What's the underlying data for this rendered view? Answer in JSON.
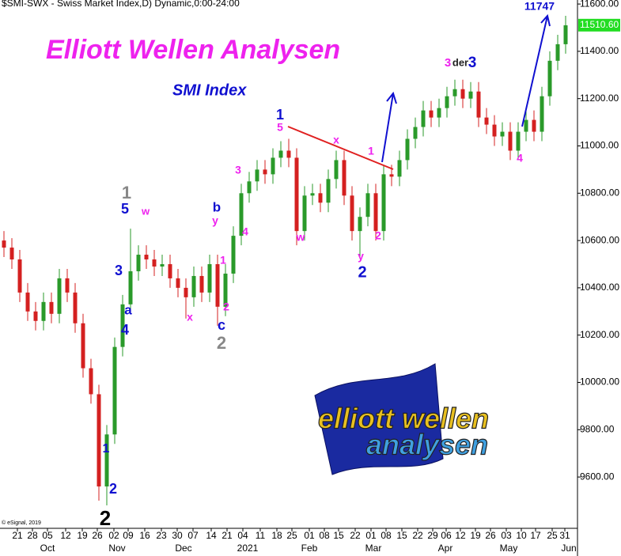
{
  "chart_data": {
    "type": "candlestick",
    "title": "$SMI-SWX - Swiss Market Index,D) Dynamic,0:00-24:00",
    "up_color": "#2a9a2a",
    "down_color": "#d42020",
    "open": [
      10600,
      10570,
      10520,
      10380,
      10300,
      10260,
      10340,
      10290,
      10440,
      10380,
      10250,
      10060,
      9950,
      9560,
      9780,
      10150,
      10330,
      10470,
      10540,
      10520,
      10490,
      10500,
      10440,
      10400,
      10360,
      10450,
      10380,
      10500,
      10320,
      10460,
      10620,
      10800,
      10850,
      10900,
      10880,
      10950,
      10980,
      10950,
      10640,
      10790,
      10800,
      10760,
      10860,
      10940,
      10790,
      10640,
      10700,
      10800,
      10640,
      10880,
      10870,
      10940,
      11030,
      11080,
      11150,
      11120,
      11160,
      11210,
      11240,
      11200,
      11230,
      11120,
      11090,
      11040,
      11060,
      10980,
      11060,
      11110,
      11060,
      11210,
      11360,
      11430
    ],
    "high": [
      10640,
      10610,
      10560,
      10420,
      10340,
      10380,
      10380,
      10480,
      10480,
      10420,
      10290,
      10100,
      9990,
      9820,
      10190,
      10370,
      10650,
      10580,
      10580,
      10560,
      10540,
      10540,
      10480,
      10440,
      10490,
      10490,
      10540,
      10540,
      10500,
      10660,
      10840,
      10890,
      10940,
      10940,
      10990,
      11020,
      11030,
      10990,
      10830,
      10840,
      10840,
      10900,
      10980,
      10980,
      10830,
      10740,
      10840,
      10840,
      10920,
      10920,
      10980,
      11070,
      11120,
      11190,
      11190,
      11200,
      11250,
      11280,
      11280,
      11270,
      11270,
      11160,
      11130,
      11100,
      11100,
      11100,
      11150,
      11150,
      11250,
      11400,
      11470,
      11550
    ],
    "low": [
      10530,
      10480,
      10340,
      10260,
      10220,
      10220,
      10250,
      10250,
      10340,
      10210,
      10020,
      9910,
      9500,
      9480,
      9740,
      10110,
      10290,
      10430,
      10480,
      10450,
      10450,
      10400,
      10360,
      10270,
      10320,
      10340,
      10340,
      10240,
      10280,
      10420,
      10580,
      10760,
      10810,
      10840,
      10840,
      10910,
      10910,
      10580,
      10600,
      10750,
      10720,
      10720,
      10820,
      10750,
      10600,
      10530,
      10660,
      10600,
      10600,
      10830,
      10830,
      10900,
      10990,
      11040,
      11080,
      11080,
      11120,
      11170,
      11160,
      11160,
      11080,
      11050,
      11000,
      11000,
      10940,
      10940,
      11020,
      11020,
      11020,
      11170,
      11320,
      11390
    ],
    "close": [
      10570,
      10520,
      10380,
      10300,
      10260,
      10340,
      10290,
      10440,
      10380,
      10250,
      10060,
      9950,
      9560,
      9780,
      10150,
      10330,
      10470,
      10540,
      10520,
      10490,
      10500,
      10440,
      10400,
      10360,
      10450,
      10380,
      10500,
      10320,
      10460,
      10620,
      10800,
      10850,
      10900,
      10880,
      10950,
      10980,
      10950,
      10640,
      10790,
      10800,
      10760,
      10860,
      10940,
      10790,
      10640,
      10700,
      10800,
      10640,
      10880,
      10870,
      10940,
      11030,
      11080,
      11150,
      11120,
      11160,
      11210,
      11240,
      11200,
      11230,
      11120,
      11090,
      11040,
      11060,
      10980,
      11060,
      11110,
      11060,
      11210,
      11360,
      11430,
      11510
    ],
    "ylim": [
      9383,
      11617
    ],
    "yticks": [
      {
        "value": 9600,
        "label": "9600.00"
      },
      {
        "value": 9800,
        "label": "9800.00"
      },
      {
        "value": 10000,
        "label": "10000.00"
      },
      {
        "value": 10200,
        "label": "10200.00"
      },
      {
        "value": 10400,
        "label": "10400.00"
      },
      {
        "value": 10600,
        "label": "10600.00"
      },
      {
        "value": 10800,
        "label": "10800.00"
      },
      {
        "value": 11000,
        "label": "11000.00"
      },
      {
        "value": 11200,
        "label": "11200.00"
      },
      {
        "value": 11400,
        "label": "11400.00"
      },
      {
        "value": 11600,
        "label": "11600.00"
      }
    ],
    "last_price": {
      "value": 11510.6,
      "label": "11510.60"
    },
    "xlim": [
      -0.5,
      72.5
    ],
    "xticks": [
      {
        "value": 1.7,
        "label": "21"
      },
      {
        "value": 3.6,
        "label": "28"
      },
      {
        "value": 5.5,
        "label": "05"
      },
      {
        "value": 7.8,
        "label": "12"
      },
      {
        "value": 9.9,
        "label": "19"
      },
      {
        "value": 11.8,
        "label": "26"
      },
      {
        "value": 13.9,
        "label": "02"
      },
      {
        "value": 15.7,
        "label": "09"
      },
      {
        "value": 17.8,
        "label": "16"
      },
      {
        "value": 19.9,
        "label": "23"
      },
      {
        "value": 21.9,
        "label": "30"
      },
      {
        "value": 23.9,
        "label": "07"
      },
      {
        "value": 26.2,
        "label": "14"
      },
      {
        "value": 28.2,
        "label": "21"
      },
      {
        "value": 30.2,
        "label": "04"
      },
      {
        "value": 32.4,
        "label": "11"
      },
      {
        "value": 34.5,
        "label": "18"
      },
      {
        "value": 36.4,
        "label": "25"
      },
      {
        "value": 38.6,
        "label": "01"
      },
      {
        "value": 40.5,
        "label": "08"
      },
      {
        "value": 42.3,
        "label": "15"
      },
      {
        "value": 44.4,
        "label": "22"
      },
      {
        "value": 46.4,
        "label": "01"
      },
      {
        "value": 48.3,
        "label": "08"
      },
      {
        "value": 50.3,
        "label": "15"
      },
      {
        "value": 52.3,
        "label": "22"
      },
      {
        "value": 54.2,
        "label": "29"
      },
      {
        "value": 55.9,
        "label": "06"
      },
      {
        "value": 57.7,
        "label": "12"
      },
      {
        "value": 59.6,
        "label": "19"
      },
      {
        "value": 61.5,
        "label": "26"
      },
      {
        "value": 63.5,
        "label": "03"
      },
      {
        "value": 65.4,
        "label": "10"
      },
      {
        "value": 67.2,
        "label": "17"
      },
      {
        "value": 69.3,
        "label": "25"
      },
      {
        "value": 70.9,
        "label": "31"
      }
    ],
    "month_labels": [
      {
        "value": 5.5,
        "label": "Oct"
      },
      {
        "value": 14.3,
        "label": "Nov"
      },
      {
        "value": 22.7,
        "label": "Dec"
      },
      {
        "value": 30.8,
        "label": "2021"
      },
      {
        "value": 38.6,
        "label": "Feb"
      },
      {
        "value": 46.7,
        "label": "Mar"
      },
      {
        "value": 55.8,
        "label": "Apr"
      },
      {
        "value": 63.8,
        "label": "May"
      },
      {
        "value": 71.4,
        "label": "Jun"
      }
    ],
    "annotations": [
      {
        "text": "Elliott Wellen Analysen",
        "color": "#ee22ee"
      },
      {
        "text": "SMI Index",
        "color": "#1010d0"
      },
      {
        "text": "11747",
        "color": "#1010d0"
      },
      {
        "text": "1",
        "color": "#888888"
      },
      {
        "text": "5",
        "color": "#1010d0"
      },
      {
        "text": "w",
        "color": "#ee22ee"
      },
      {
        "text": "3",
        "color": "#1010d0"
      },
      {
        "text": "a",
        "color": "#1010d0"
      },
      {
        "text": "4",
        "color": "#1010d0"
      },
      {
        "text": "x",
        "color": "#ee22ee"
      },
      {
        "text": "b",
        "color": "#1010d0"
      },
      {
        "text": "y",
        "color": "#ee22ee"
      },
      {
        "text": "4",
        "color": "#ee22ee"
      },
      {
        "text": "3",
        "color": "#ee22ee"
      },
      {
        "text": "1",
        "color": "#ee22ee"
      },
      {
        "text": "2",
        "color": "#ee22ee"
      },
      {
        "text": "c",
        "color": "#1010d0"
      },
      {
        "text": "2",
        "color": "#888888"
      },
      {
        "text": "1",
        "color": "#1010d0"
      },
      {
        "text": "5",
        "color": "#ee22ee"
      },
      {
        "text": "x",
        "color": "#ee22ee"
      },
      {
        "text": "w",
        "color": "#ee22ee"
      },
      {
        "text": "1",
        "color": "#ee22ee"
      },
      {
        "text": "y",
        "color": "#ee22ee"
      },
      {
        "text": "2",
        "color": "#1010d0"
      },
      {
        "text": "2",
        "color": "#ee22ee"
      },
      {
        "text": "3",
        "color": "#ee22ee"
      },
      {
        "text": "der",
        "color": "#222222"
      },
      {
        "text": "3",
        "color": "#1010d0"
      },
      {
        "text": "4",
        "color": "#ee22ee"
      },
      {
        "text": "1",
        "color": "#1010d0"
      },
      {
        "text": "2",
        "color": "#1010d0"
      },
      {
        "text": "2",
        "color": "#000000"
      }
    ],
    "copyright": "© eSignal, 2019",
    "logo": [
      "elliott wellen",
      "analysen"
    ]
  }
}
